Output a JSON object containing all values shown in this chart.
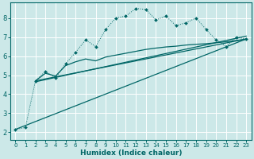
{
  "xlabel": "Humidex (Indice chaleur)",
  "bg_color": "#cce8e8",
  "grid_color": "#ffffff",
  "line_color": "#006666",
  "x_ticks": [
    0,
    1,
    2,
    3,
    4,
    5,
    6,
    7,
    8,
    9,
    10,
    11,
    12,
    13,
    14,
    15,
    16,
    17,
    18,
    19,
    20,
    21,
    22,
    23
  ],
  "y_ticks": [
    2,
    3,
    4,
    5,
    6,
    7,
    8
  ],
  "ylim": [
    1.6,
    8.8
  ],
  "xlim": [
    -0.5,
    23.5
  ],
  "series_dotted_x": [
    0,
    1,
    2,
    3,
    4,
    5,
    6,
    7,
    8,
    9,
    10,
    11,
    12,
    13,
    14,
    15,
    16,
    17,
    18,
    19,
    20,
    21,
    22,
    23
  ],
  "series_dotted_y": [
    2.15,
    2.25,
    4.7,
    5.2,
    4.85,
    5.6,
    6.2,
    6.85,
    6.5,
    7.4,
    8.0,
    8.1,
    8.5,
    8.45,
    7.9,
    8.1,
    7.6,
    7.75,
    8.0,
    7.4,
    6.85,
    6.5,
    7.0,
    6.9
  ],
  "line1_x": [
    2,
    23
  ],
  "line1_y": [
    4.7,
    6.9
  ],
  "line2_x": [
    2,
    23
  ],
  "line2_y": [
    4.65,
    7.05
  ],
  "line3_x": [
    0,
    23
  ],
  "line3_y": [
    2.15,
    6.9
  ],
  "smooth_x": [
    2,
    3,
    4,
    5,
    6,
    7,
    8,
    9,
    10,
    11,
    12,
    13,
    14,
    15,
    16,
    17,
    18,
    19,
    20,
    21,
    22,
    23
  ],
  "smooth_y": [
    4.7,
    5.1,
    4.95,
    5.5,
    5.7,
    5.85,
    5.75,
    5.95,
    6.05,
    6.15,
    6.25,
    6.35,
    6.42,
    6.48,
    6.52,
    6.58,
    6.62,
    6.65,
    6.7,
    6.75,
    6.82,
    6.88
  ]
}
